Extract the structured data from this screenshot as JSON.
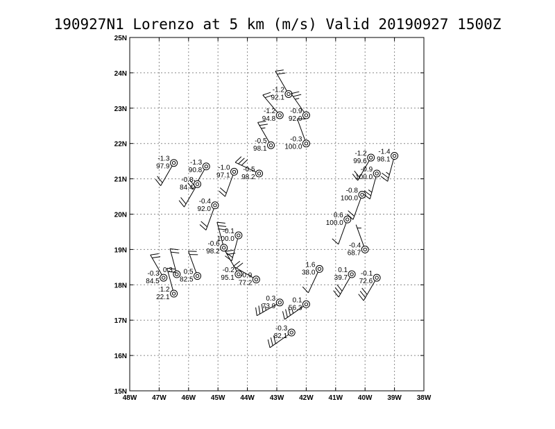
{
  "title": "190927N1 Lorenzo at 5 km (m/s) Valid 20190927 1500Z",
  "map": {
    "lon_range": [
      -48,
      -38
    ],
    "lat_range": [
      15,
      25
    ],
    "grid": "dotted",
    "x_ticks": [
      "48W",
      "47W",
      "46W",
      "45W",
      "44W",
      "43W",
      "42W",
      "41W",
      "40W",
      "39W",
      "38W"
    ],
    "y_ticks": [
      "15N",
      "16N",
      "17N",
      "18N",
      "19N",
      "20N",
      "21N",
      "22N",
      "23N",
      "24N",
      "25N"
    ]
  },
  "observations": [
    {
      "lon": -42.6,
      "lat": 23.4,
      "top": "-1.2",
      "bottom": "92.1",
      "wdir": 330,
      "wspd": 20
    },
    {
      "lon": -42.0,
      "lat": 22.8,
      "top": "-0.9",
      "bottom": "92.0",
      "wdir": 325,
      "wspd": 25
    },
    {
      "lon": -42.9,
      "lat": 22.8,
      "top": "-1.2",
      "bottom": "94.8",
      "wdir": 320,
      "wspd": 20
    },
    {
      "lon": -42.0,
      "lat": 22.0,
      "top": "-0.3",
      "bottom": "100.0",
      "wdir": 340,
      "wspd": 10
    },
    {
      "lon": -43.2,
      "lat": 21.95,
      "top": "-0.5",
      "bottom": "98.1",
      "wdir": 330,
      "wspd": 25
    },
    {
      "lon": -46.5,
      "lat": 21.45,
      "top": "-1.3",
      "bottom": "97.9",
      "wdir": 210,
      "wspd": 20
    },
    {
      "lon": -45.4,
      "lat": 21.35,
      "top": "-1.3",
      "bottom": "90.8",
      "wdir": 210,
      "wspd": 25
    },
    {
      "lon": -44.45,
      "lat": 21.2,
      "top": "-1.0",
      "bottom": "97.1",
      "wdir": 200,
      "wspd": 20
    },
    {
      "lon": -43.6,
      "lat": 21.15,
      "top": "-0.5",
      "bottom": "98.2",
      "wdir": 295,
      "wspd": 30
    },
    {
      "lon": -45.7,
      "lat": 20.85,
      "top": "-0.8",
      "bottom": "84.4",
      "wdir": 210,
      "wspd": 20
    },
    {
      "lon": -45.1,
      "lat": 20.25,
      "top": "-0.4",
      "bottom": "92.0",
      "wdir": 200,
      "wspd": 20
    },
    {
      "lon": -44.3,
      "lat": 19.4,
      "top": "-0.1",
      "bottom": "100.0",
      "wdir": 195,
      "wspd": 20
    },
    {
      "lon": -44.8,
      "lat": 19.05,
      "top": "-0.6",
      "bottom": "98.2",
      "wdir": 345,
      "wspd": 30
    },
    {
      "lon": -44.3,
      "lat": 18.3,
      "top": "-0.2",
      "bottom": "95.1",
      "wdir": 330,
      "wspd": 20
    },
    {
      "lon": -43.7,
      "lat": 18.15,
      "top": "-0.9",
      "bottom": "77.2",
      "wdir": 300,
      "wspd": 20
    },
    {
      "lon": -46.85,
      "lat": 18.2,
      "top": "-0.3",
      "bottom": "84.5",
      "wdir": 330,
      "wspd": 20
    },
    {
      "lon": -46.4,
      "lat": 18.3,
      "top": "0.3",
      "bottom": "",
      "wdir": 345,
      "wspd": 20
    },
    {
      "lon": -45.7,
      "lat": 18.25,
      "top": "0.5",
      "bottom": "82.5",
      "wdir": 340,
      "wspd": 20
    },
    {
      "lon": -46.5,
      "lat": 17.75,
      "top": "1.2",
      "bottom": "22.1",
      "wdir": 345,
      "wspd": 20
    },
    {
      "lon": -41.55,
      "lat": 18.45,
      "top": "1.6",
      "bottom": "38.0",
      "wdir": 205,
      "wspd": 10
    },
    {
      "lon": -42.9,
      "lat": 17.5,
      "top": "0.3",
      "bottom": "73.9",
      "wdir": 240,
      "wspd": 35
    },
    {
      "lon": -42.0,
      "lat": 17.45,
      "top": "0.1",
      "bottom": "56.3",
      "wdir": 235,
      "wspd": 35
    },
    {
      "lon": -42.5,
      "lat": 16.65,
      "top": "-0.3",
      "bottom": "82.1",
      "wdir": 235,
      "wspd": 30
    },
    {
      "lon": -40.6,
      "lat": 19.85,
      "top": "0.6",
      "bottom": "100.0",
      "wdir": 200,
      "wspd": 10
    },
    {
      "lon": -40.0,
      "lat": 19.0,
      "top": "-0.4",
      "bottom": "68.7",
      "wdir": 340,
      "wspd": 5
    },
    {
      "lon": -40.45,
      "lat": 18.3,
      "top": "0.1",
      "bottom": "39.7",
      "wdir": 210,
      "wspd": 30
    },
    {
      "lon": -39.6,
      "lat": 18.2,
      "top": "-0.1",
      "bottom": "72.6",
      "wdir": 210,
      "wspd": 30
    },
    {
      "lon": -40.1,
      "lat": 20.55,
      "top": "-0.8",
      "bottom": "100.0",
      "wdir": 200,
      "wspd": 20
    },
    {
      "lon": -39.6,
      "lat": 21.15,
      "top": "-0.9",
      "bottom": "100.0",
      "wdir": 195,
      "wspd": 25
    },
    {
      "lon": -39.8,
      "lat": 21.6,
      "top": "-1.2",
      "bottom": "99.6",
      "wdir": 210,
      "wspd": 20
    },
    {
      "lon": -39.0,
      "lat": 21.65,
      "top": "-1.4",
      "bottom": "98.1",
      "wdir": 195,
      "wspd": 25
    }
  ]
}
